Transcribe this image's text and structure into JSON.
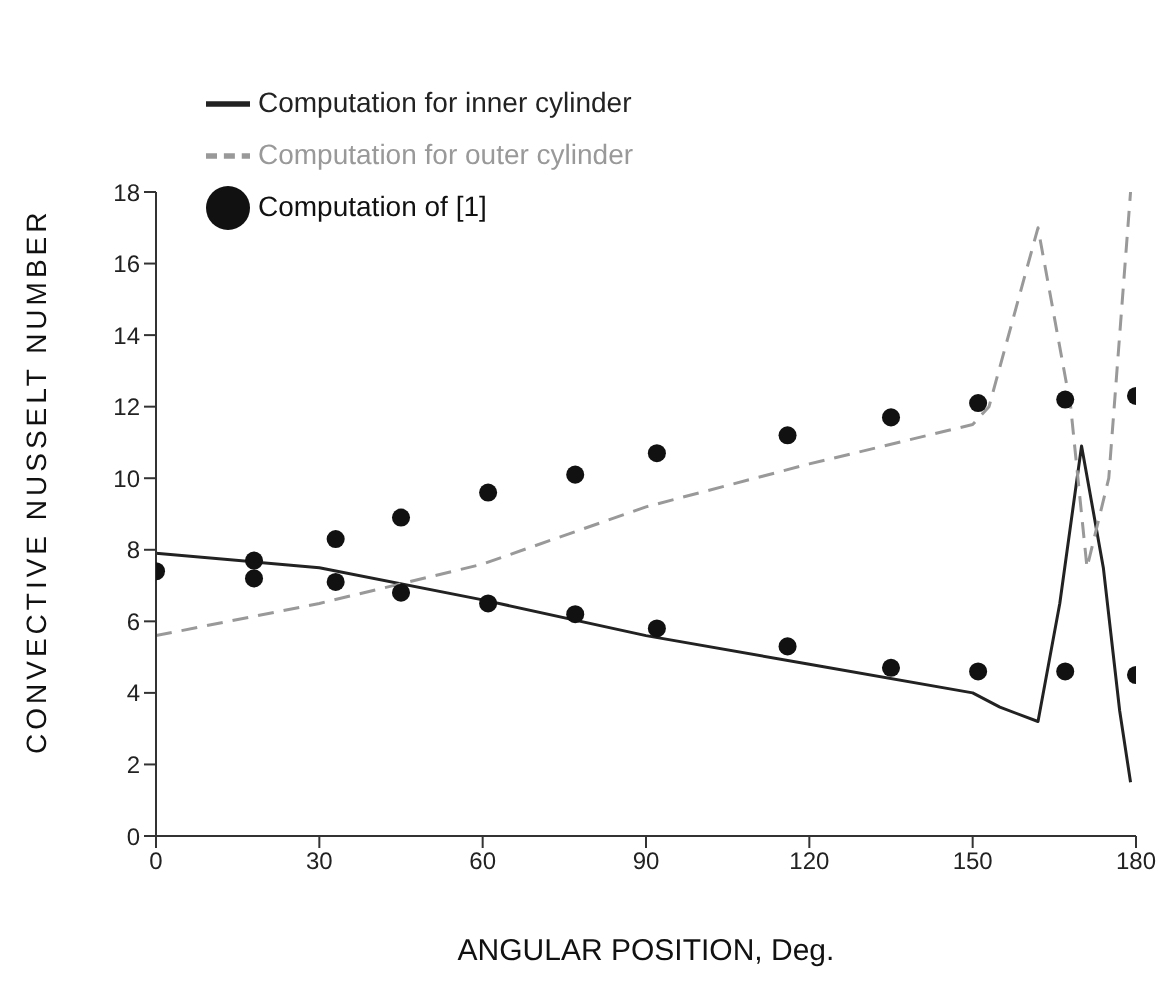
{
  "chart_data": {
    "type": "line",
    "xlabel": "ANGULAR POSITION, Deg.",
    "ylabel": "CONVECTIVE NUSSELT NUMBER",
    "xlim": [
      0,
      180
    ],
    "xticks": [
      0,
      30,
      60,
      90,
      120,
      150,
      180
    ],
    "ylim": [
      0,
      18
    ],
    "yticks": [
      0,
      2,
      4,
      6,
      8,
      10,
      12,
      14,
      16,
      18
    ],
    "grid": false,
    "legend": "top left",
    "series": [
      {
        "name": "Computation for inner cylinder",
        "color": "#222222",
        "line_style": "solid",
        "marker": "none",
        "x": [
          0,
          30,
          60,
          90,
          120,
          150,
          155,
          162,
          166,
          170,
          174,
          177,
          179
        ],
        "values": [
          7.9,
          7.5,
          6.6,
          5.6,
          4.8,
          4.0,
          3.6,
          3.2,
          6.5,
          10.9,
          7.5,
          3.5,
          1.5
        ]
      },
      {
        "name": "Computation for outer cylinder",
        "color": "#999999",
        "line_style": "dashed",
        "marker": "none",
        "x": [
          0,
          30,
          60,
          90,
          120,
          150,
          153,
          162,
          168,
          171,
          175,
          179
        ],
        "values": [
          5.6,
          6.5,
          7.6,
          9.2,
          10.4,
          11.5,
          12.0,
          17.0,
          12.0,
          7.5,
          10.0,
          18.0
        ]
      },
      {
        "name": "Computation of [1]",
        "type": "scatter",
        "color": "#111111",
        "marker": "circle",
        "x": [
          0,
          18,
          33,
          45,
          61,
          77,
          92,
          116,
          135,
          151,
          167,
          180,
          18,
          33,
          45,
          61,
          77,
          92,
          116,
          135,
          151,
          167,
          180
        ],
        "values": [
          7.4,
          7.7,
          8.3,
          8.9,
          9.6,
          10.1,
          10.7,
          11.2,
          11.7,
          12.1,
          12.2,
          12.3,
          7.2,
          7.1,
          6.8,
          6.5,
          6.2,
          5.8,
          5.3,
          4.7,
          4.6,
          4.6,
          4.5
        ]
      }
    ]
  }
}
